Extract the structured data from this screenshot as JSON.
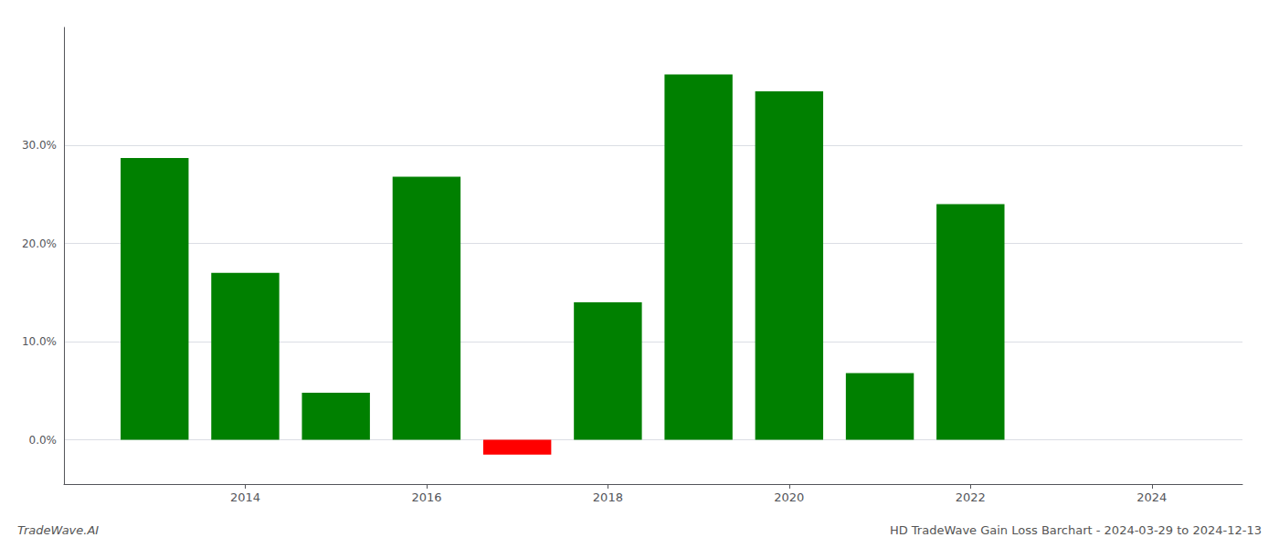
{
  "chart_data": {
    "type": "bar",
    "title": "HD TradeWave Gain Loss Barchart - 2024-03-29 to 2024-12-13",
    "annotation": "TradeWave.AI",
    "x": [
      2013,
      2014,
      2015,
      2016,
      2017,
      2018,
      2019,
      2020,
      2021,
      2022,
      2023
    ],
    "values": [
      28.7,
      17.0,
      4.8,
      26.8,
      -1.5,
      14.0,
      37.2,
      35.5,
      6.8,
      24.0,
      0.0
    ],
    "colors": [
      "#008000",
      "#008000",
      "#008000",
      "#008000",
      "#ff0000",
      "#008000",
      "#008000",
      "#008000",
      "#008000",
      "#008000",
      "#008000"
    ],
    "xlim": [
      2012,
      2025
    ],
    "xticks": [
      2014,
      2016,
      2018,
      2020,
      2022,
      2024
    ],
    "ylim": [
      -4.5,
      42
    ],
    "yticks": [
      {
        "value": 0.0,
        "label": "0.0%"
      },
      {
        "value": 10.0,
        "label": "10.0%"
      },
      {
        "value": 20.0,
        "label": "20.0%"
      },
      {
        "value": 30.0,
        "label": "30.0%"
      }
    ],
    "grid": true
  }
}
